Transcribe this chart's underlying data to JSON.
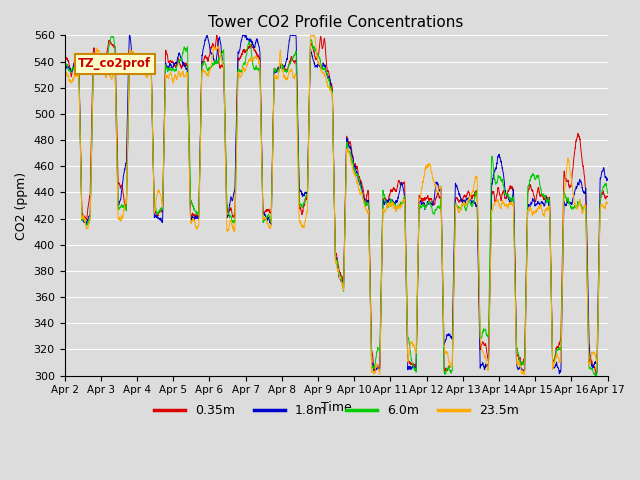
{
  "title": "Tower CO2 Profile Concentrations",
  "xlabel": "Time",
  "ylabel": "CO2 (ppm)",
  "ylim": [
    300,
    560
  ],
  "yticks": [
    300,
    320,
    340,
    360,
    380,
    400,
    420,
    440,
    460,
    480,
    500,
    520,
    540,
    560
  ],
  "annotation_text": "TZ_co2prof",
  "legend_labels": [
    "0.35m",
    "1.8m",
    "6.0m",
    "23.5m"
  ],
  "line_colors": [
    "#dd0000",
    "#0000cc",
    "#00cc00",
    "#ffaa00"
  ],
  "plot_bg": "#dcdcdc",
  "grid_color": "#ffffff",
  "fig_bg": "#dcdcdc",
  "n_points": 3000,
  "seed": 12345
}
